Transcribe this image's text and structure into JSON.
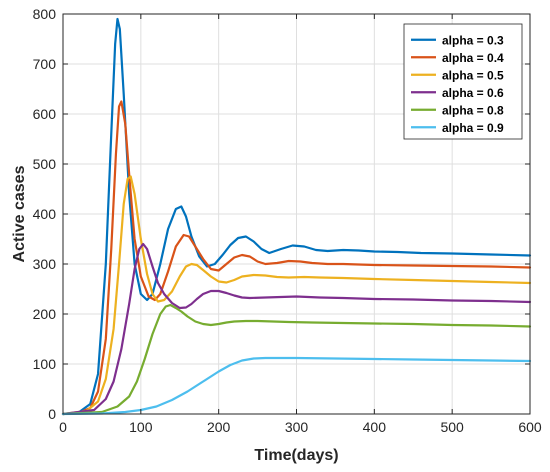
{
  "chart_data": {
    "type": "line",
    "title": "",
    "xlabel": "Time(days)",
    "ylabel": "Active cases",
    "xlim": [
      0,
      600
    ],
    "ylim": [
      0,
      800
    ],
    "xticks": [
      0,
      100,
      200,
      300,
      400,
      500,
      600
    ],
    "yticks": [
      0,
      100,
      200,
      300,
      400,
      500,
      600,
      700,
      800
    ],
    "grid": true,
    "legend_position": "top-right",
    "series": [
      {
        "name": "alpha = 0.3",
        "color": "#0072BD",
        "x": [
          0,
          20,
          35,
          45,
          55,
          62,
          67,
          70,
          73,
          78,
          85,
          92,
          100,
          108,
          115,
          125,
          135,
          145,
          152,
          158,
          165,
          175,
          185,
          195,
          205,
          215,
          225,
          235,
          245,
          255,
          265,
          280,
          295,
          310,
          325,
          340,
          360,
          380,
          400,
          430,
          460,
          500,
          550,
          600
        ],
        "y": [
          0,
          3,
          20,
          80,
          300,
          560,
          740,
          790,
          770,
          640,
          440,
          300,
          240,
          228,
          240,
          300,
          370,
          410,
          415,
          395,
          355,
          315,
          295,
          300,
          318,
          338,
          352,
          355,
          345,
          330,
          322,
          330,
          337,
          335,
          328,
          326,
          328,
          327,
          325,
          324,
          322,
          321,
          319,
          317
        ]
      },
      {
        "name": "alpha = 0.4",
        "color": "#D95319",
        "x": [
          0,
          20,
          35,
          45,
          55,
          62,
          68,
          72,
          75,
          80,
          86,
          92,
          100,
          110,
          118,
          125,
          135,
          145,
          155,
          162,
          170,
          180,
          190,
          200,
          210,
          220,
          230,
          240,
          250,
          260,
          275,
          290,
          305,
          320,
          340,
          360,
          400,
          450,
          500,
          550,
          600
        ],
        "y": [
          0,
          2,
          12,
          45,
          150,
          330,
          520,
          615,
          625,
          580,
          460,
          350,
          275,
          235,
          228,
          240,
          285,
          335,
          358,
          355,
          335,
          310,
          290,
          287,
          300,
          313,
          318,
          315,
          305,
          300,
          302,
          306,
          305,
          302,
          300,
          300,
          298,
          297,
          296,
          295,
          293
        ]
      },
      {
        "name": "alpha = 0.5",
        "color": "#EDB120",
        "x": [
          0,
          30,
          45,
          55,
          65,
          72,
          78,
          83,
          87,
          92,
          100,
          108,
          115,
          122,
          130,
          140,
          150,
          158,
          165,
          172,
          180,
          190,
          200,
          210,
          220,
          230,
          245,
          260,
          275,
          290,
          310,
          330,
          360,
          400,
          450,
          500,
          550,
          600
        ],
        "y": [
          0,
          6,
          25,
          70,
          170,
          300,
          420,
          470,
          475,
          440,
          350,
          280,
          240,
          225,
          228,
          245,
          275,
          295,
          300,
          298,
          288,
          275,
          265,
          263,
          268,
          275,
          278,
          277,
          274,
          273,
          274,
          273,
          272,
          270,
          268,
          266,
          264,
          262
        ]
      },
      {
        "name": "alpha = 0.6",
        "color": "#7E2F8E",
        "x": [
          0,
          40,
          55,
          65,
          75,
          85,
          92,
          98,
          103,
          108,
          115,
          122,
          130,
          140,
          150,
          158,
          165,
          172,
          180,
          190,
          200,
          210,
          220,
          230,
          240,
          260,
          280,
          300,
          330,
          360,
          400,
          450,
          500,
          550,
          600
        ],
        "y": [
          0,
          8,
          30,
          65,
          130,
          220,
          290,
          330,
          340,
          330,
          295,
          262,
          240,
          222,
          212,
          213,
          220,
          230,
          240,
          246,
          246,
          242,
          237,
          233,
          232,
          233,
          234,
          235,
          233,
          232,
          230,
          229,
          227,
          226,
          224
        ]
      },
      {
        "name": "alpha = 0.8",
        "color": "#77AC30",
        "x": [
          0,
          50,
          70,
          85,
          95,
          105,
          115,
          125,
          132,
          138,
          145,
          152,
          160,
          170,
          180,
          190,
          200,
          210,
          220,
          235,
          250,
          270,
          290,
          320,
          360,
          400,
          450,
          500,
          550,
          600
        ],
        "y": [
          0,
          4,
          15,
          35,
          65,
          110,
          160,
          200,
          215,
          218,
          212,
          205,
          195,
          185,
          180,
          178,
          180,
          183,
          185,
          186,
          186,
          185,
          184,
          183,
          182,
          181,
          180,
          178,
          177,
          175
        ]
      },
      {
        "name": "alpha = 0.9",
        "color": "#4DBEEE",
        "x": [
          0,
          50,
          80,
          100,
          120,
          140,
          160,
          180,
          200,
          215,
          230,
          245,
          260,
          280,
          300,
          350,
          400,
          450,
          500,
          550,
          600
        ],
        "y": [
          0,
          1,
          4,
          8,
          15,
          28,
          45,
          65,
          85,
          98,
          107,
          111,
          112,
          112,
          112,
          111,
          110,
          109,
          108,
          107,
          106
        ]
      }
    ]
  }
}
